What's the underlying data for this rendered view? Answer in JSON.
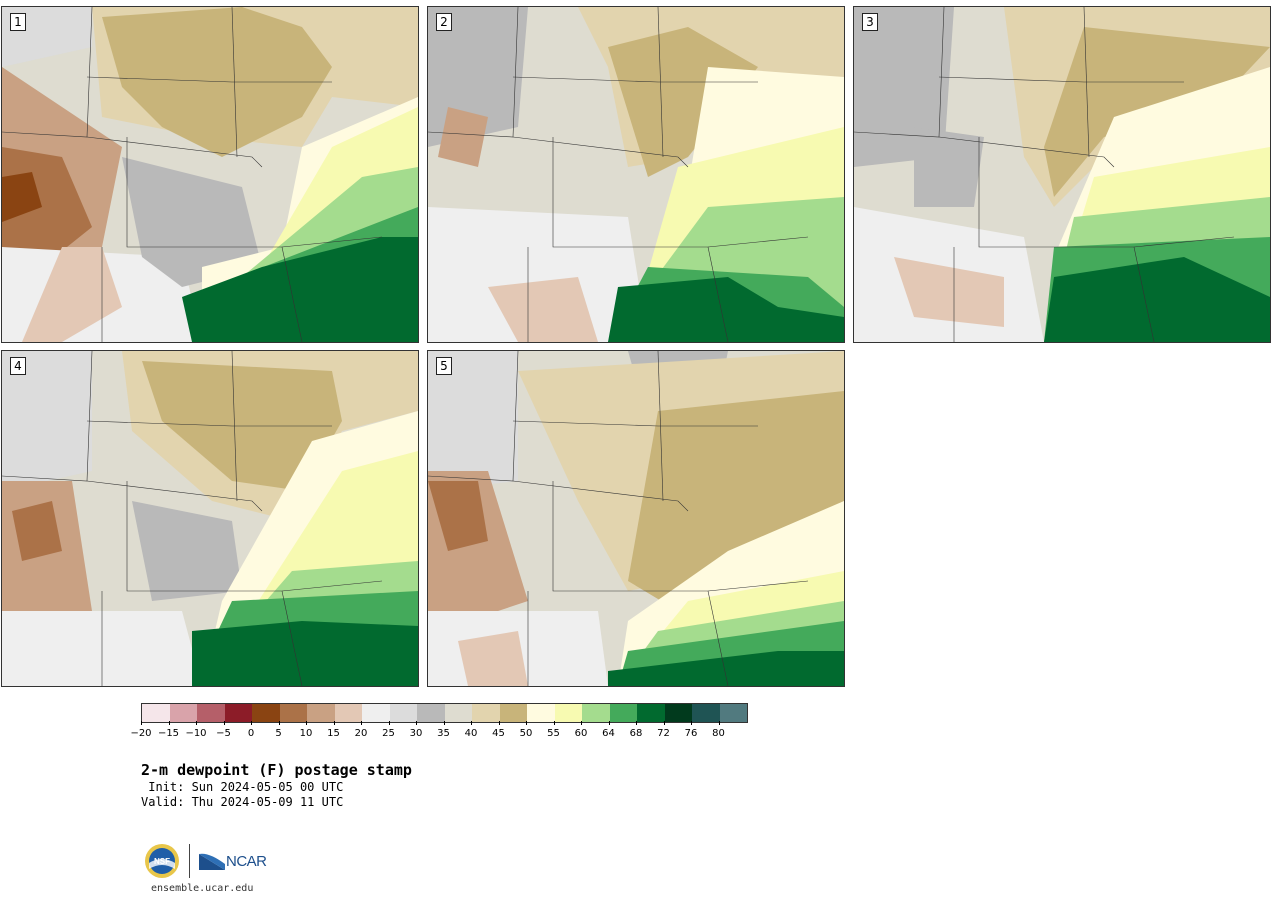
{
  "panels": [
    {
      "label": "1"
    },
    {
      "label": "2"
    },
    {
      "label": "3"
    },
    {
      "label": "4"
    },
    {
      "label": "5"
    }
  ],
  "colorbar": {
    "colors": [
      "#f5e6ea",
      "#d9a3aa",
      "#b55f69",
      "#8c1c28",
      "#8a4412",
      "#ab7248",
      "#c9a183",
      "#e3c8b5",
      "#efefef",
      "#dcdcdc",
      "#b9b9b9",
      "#dedcd0",
      "#e2d4ae",
      "#c8b47a",
      "#fffbe0",
      "#f7fab1",
      "#a4dc8e",
      "#44aa5b",
      "#016a2f",
      "#013a1d",
      "#1f5454",
      "#517a7f"
    ],
    "tick_labels": [
      "−20",
      "−15",
      "−10",
      "−5",
      "0",
      "5",
      "10",
      "15",
      "20",
      "25",
      "30",
      "35",
      "40",
      "45",
      "50",
      "55",
      "60",
      "64",
      "68",
      "72",
      "76",
      "80"
    ]
  },
  "title": "2-m dewpoint (F) postage stamp",
  "init": " Init: Sun 2024-05-05 00 UTC",
  "valid": "Valid: Thu 2024-05-09 11 UTC",
  "logo": {
    "nsf": "NSF",
    "ncar": "NCAR"
  },
  "site": "ensemble.ucar.edu"
}
